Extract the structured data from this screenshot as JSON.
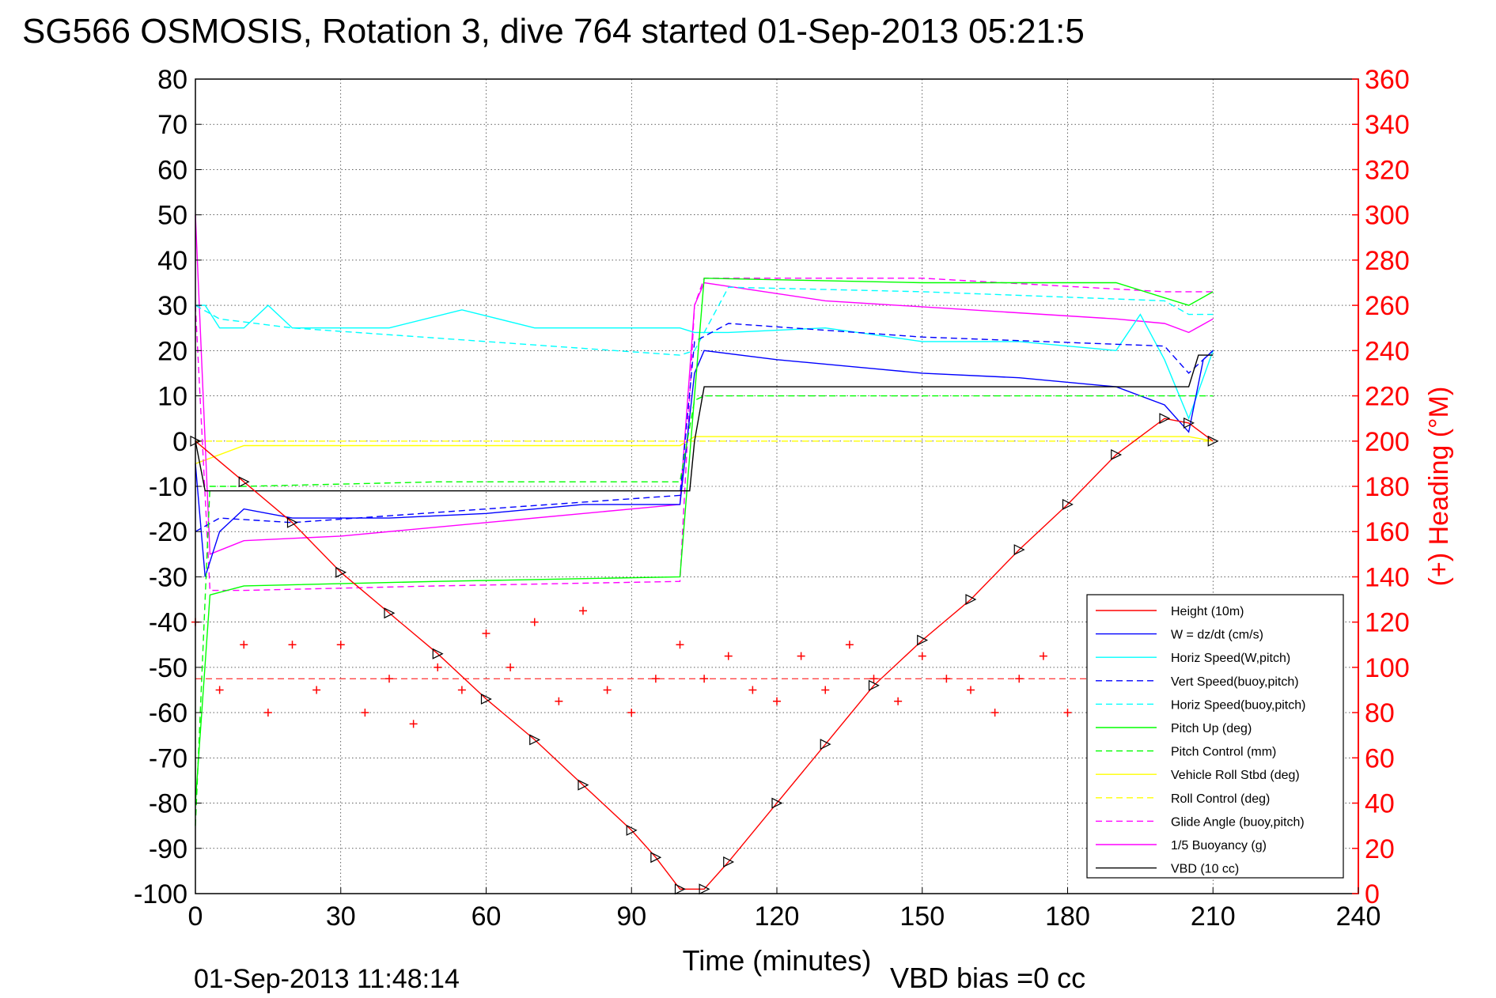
{
  "chart_data": {
    "type": "line",
    "title": "SG566 OSMOSIS, Rotation 3, dive 764 started 01-Sep-2013 05:21:5",
    "xlabel": "Time (minutes)",
    "ylabel": "",
    "ylabel_right": "(+) Heading (°M)",
    "footer_left": "01-Sep-2013 11:48:14",
    "footer_right": "VBD bias =0 cc",
    "xlim": [
      0,
      240
    ],
    "ylim": [
      -100,
      80
    ],
    "ylim_right": [
      0,
      360
    ],
    "xticks": [
      "0",
      "30",
      "60",
      "90",
      "120",
      "150",
      "180",
      "210",
      "240"
    ],
    "yticks": [
      "80",
      "70",
      "60",
      "50",
      "40",
      "30",
      "20",
      "10",
      "0",
      "-10",
      "-20",
      "-30",
      "-40",
      "-50",
      "-60",
      "-70",
      "-80",
      "-90",
      "-100"
    ],
    "yticks_right": [
      "360",
      "340",
      "320",
      "300",
      "280",
      "260",
      "240",
      "220",
      "200",
      "180",
      "160",
      "140",
      "120",
      "100",
      "80",
      "60",
      "40",
      "20",
      "0"
    ],
    "grid": true,
    "legend_position": "bottom-right",
    "colors": {
      "axis_right": "#ff0000",
      "grid": "#000000"
    },
    "series": [
      {
        "name": "Height (10m)",
        "color": "#ff0000",
        "style": "solid",
        "x": [
          0,
          10,
          20,
          30,
          40,
          50,
          60,
          70,
          80,
          90,
          95,
          100,
          105,
          110,
          120,
          130,
          140,
          150,
          160,
          170,
          180,
          190,
          200,
          205,
          210
        ],
        "y": [
          0,
          -9,
          -18,
          -29,
          -38,
          -47,
          -57,
          -66,
          -76,
          -86,
          -92,
          -99,
          -99,
          -93,
          -80,
          -67,
          -54,
          -44,
          -35,
          -24,
          -14,
          -3,
          5,
          4,
          0
        ]
      },
      {
        "name": "W = dz/dt (cm/s)",
        "color": "#0000ff",
        "style": "solid",
        "x": [
          0,
          2,
          5,
          10,
          20,
          40,
          60,
          80,
          100,
          103,
          105,
          120,
          140,
          150,
          170,
          190,
          200,
          205,
          208,
          210
        ],
        "y": [
          -5,
          -30,
          -20,
          -15,
          -17,
          -17,
          -16,
          -14,
          -14,
          15,
          20,
          18,
          16,
          15,
          14,
          12,
          8,
          2,
          18,
          20
        ]
      },
      {
        "name": "Horiz Speed(W,pitch)",
        "color": "#00ffff",
        "style": "solid",
        "x": [
          0,
          2,
          5,
          10,
          15,
          20,
          40,
          55,
          70,
          80,
          100,
          103,
          110,
          130,
          150,
          170,
          190,
          195,
          200,
          205,
          210
        ],
        "y": [
          30,
          30,
          25,
          25,
          30,
          25,
          25,
          29,
          25,
          25,
          25,
          24,
          24,
          25,
          22,
          22,
          20,
          28,
          18,
          5,
          20
        ]
      },
      {
        "name": "Vert Speed(buoy,pitch)",
        "color": "#0000ff",
        "style": "dashed",
        "x": [
          0,
          5,
          20,
          60,
          100,
          103,
          110,
          150,
          200,
          205,
          210
        ],
        "y": [
          -20,
          -17,
          -18,
          -15,
          -12,
          22,
          26,
          23,
          21,
          15,
          20
        ]
      },
      {
        "name": "Horiz Speed(buoy,pitch)",
        "color": "#00ffff",
        "style": "dashed",
        "x": [
          0,
          5,
          20,
          60,
          100,
          103,
          110,
          150,
          200,
          205,
          210
        ],
        "y": [
          30,
          27,
          25,
          22,
          19,
          20,
          34,
          33,
          31,
          28,
          28
        ]
      },
      {
        "name": "Pitch Up (deg)",
        "color": "#00ff00",
        "style": "solid",
        "x": [
          0,
          3,
          10,
          50,
          100,
          103,
          105,
          150,
          190,
          205,
          210
        ],
        "y": [
          -80,
          -34,
          -32,
          -31,
          -30,
          10,
          36,
          35,
          35,
          30,
          33
        ]
      },
      {
        "name": "Pitch Control (mm)",
        "color": "#00ff00",
        "style": "dashed",
        "x": [
          0,
          3,
          10,
          50,
          100,
          103,
          105,
          150,
          200,
          210
        ],
        "y": [
          -85,
          -10,
          -10,
          -9,
          -9,
          9,
          10,
          10,
          10,
          10
        ]
      },
      {
        "name": "Vehicle Roll Stbd (deg)",
        "color": "#ffff00",
        "style": "solid",
        "x": [
          0,
          10,
          50,
          100,
          103,
          150,
          205,
          210
        ],
        "y": [
          -5,
          -1,
          -1,
          -1,
          1,
          1,
          1,
          0
        ]
      },
      {
        "name": "Roll Control (deg)",
        "color": "#ffff00",
        "style": "dashed",
        "x": [
          0,
          10,
          100,
          103,
          210
        ],
        "y": [
          0,
          0,
          0,
          0,
          0
        ]
      },
      {
        "name": "Glide Angle (buoy,pitch)",
        "color": "#ff00ff",
        "style": "dashed",
        "x": [
          0,
          3,
          10,
          50,
          100,
          103,
          105,
          150,
          200,
          210
        ],
        "y": [
          30,
          -33,
          -33,
          -32,
          -31,
          30,
          36,
          36,
          33,
          33
        ]
      },
      {
        "name": "1/5 Buoyancy (g)",
        "color": "#ff00ff",
        "style": "solid",
        "x": [
          0,
          3,
          10,
          30,
          60,
          100,
          103,
          105,
          130,
          160,
          190,
          200,
          205,
          210
        ],
        "y": [
          50,
          -25,
          -22,
          -21,
          -18,
          -14,
          30,
          35,
          31,
          29,
          27,
          26,
          24,
          27
        ]
      },
      {
        "name": "VBD (10 cc)",
        "color": "#000000",
        "style": "solid",
        "x": [
          0,
          2,
          100,
          102,
          103,
          105,
          205,
          207,
          210
        ],
        "y": [
          0,
          -11,
          -11,
          -11,
          0,
          12,
          12,
          19,
          19
        ]
      }
    ],
    "heading_series": {
      "color": "#ff0000",
      "marker": "+",
      "mean_heading": 95,
      "x": [
        0,
        5,
        10,
        15,
        20,
        25,
        30,
        35,
        40,
        45,
        50,
        55,
        60,
        65,
        70,
        75,
        80,
        85,
        90,
        95,
        100,
        105,
        110,
        115,
        120,
        125,
        130,
        135,
        140,
        145,
        150,
        155,
        160,
        165,
        170,
        175,
        180,
        185
      ],
      "y": [
        120,
        90,
        110,
        80,
        110,
        90,
        110,
        80,
        95,
        75,
        100,
        90,
        115,
        100,
        120,
        85,
        125,
        90,
        80,
        95,
        110,
        95,
        105,
        90,
        85,
        105,
        90,
        110,
        95,
        85,
        105,
        95,
        90,
        80,
        95,
        105,
        80,
        90
      ]
    }
  },
  "legend": {
    "items": [
      {
        "label": "Height (10m)",
        "color": "#ff0000",
        "style": "solid"
      },
      {
        "label": "W = dz/dt (cm/s)",
        "color": "#0000ff",
        "style": "solid"
      },
      {
        "label": "Horiz Speed(W,pitch)",
        "color": "#00ffff",
        "style": "solid"
      },
      {
        "label": "Vert Speed(buoy,pitch)",
        "color": "#0000ff",
        "style": "dashed"
      },
      {
        "label": "Horiz Speed(buoy,pitch)",
        "color": "#00ffff",
        "style": "dashed"
      },
      {
        "label": "Pitch Up (deg)",
        "color": "#00ff00",
        "style": "solid"
      },
      {
        "label": "Pitch Control (mm)",
        "color": "#00ff00",
        "style": "dashed"
      },
      {
        "label": "Vehicle Roll Stbd (deg)",
        "color": "#ffff00",
        "style": "solid"
      },
      {
        "label": "Roll Control (deg)",
        "color": "#ffff00",
        "style": "dashed"
      },
      {
        "label": "Glide Angle (buoy,pitch)",
        "color": "#ff00ff",
        "style": "dashed"
      },
      {
        "label": "1/5 Buoyancy (g)",
        "color": "#ff00ff",
        "style": "solid"
      },
      {
        "label": "VBD (10 cc)",
        "color": "#000000",
        "style": "solid"
      }
    ]
  }
}
